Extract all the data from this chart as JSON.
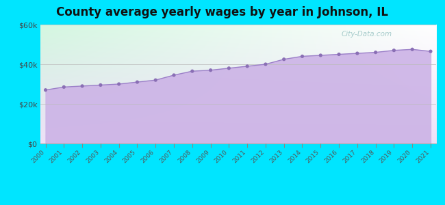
{
  "title": "County average yearly wages by year in Johnson, IL",
  "years": [
    2000,
    2001,
    2002,
    2003,
    2004,
    2005,
    2006,
    2007,
    2008,
    2009,
    2010,
    2011,
    2012,
    2013,
    2014,
    2015,
    2016,
    2017,
    2018,
    2019,
    2020,
    2021
  ],
  "wages": [
    27000,
    28500,
    29000,
    29500,
    30000,
    31000,
    32000,
    34500,
    36500,
    37000,
    38000,
    39000,
    40000,
    42500,
    44000,
    44500,
    45000,
    45500,
    46000,
    47000,
    47500,
    46500
  ],
  "ylim": [
    0,
    60000
  ],
  "yticks": [
    0,
    20000,
    40000,
    60000
  ],
  "ytick_labels": [
    "$0",
    "$20k",
    "$40k",
    "$60k"
  ],
  "fill_color": "#ccb3e6",
  "line_color": "#9b80c8",
  "marker_color": "#8a6fb5",
  "background_outer": "#00e5ff",
  "title_fontsize": 12,
  "title_fontweight": "bold",
  "watermark_text": "City-Data.com",
  "watermark_color": "#99c4c4",
  "bg_top_left": "#d4f5e0",
  "bg_top_right": "#f5f5ff",
  "bg_bottom": "#e8e0f8"
}
